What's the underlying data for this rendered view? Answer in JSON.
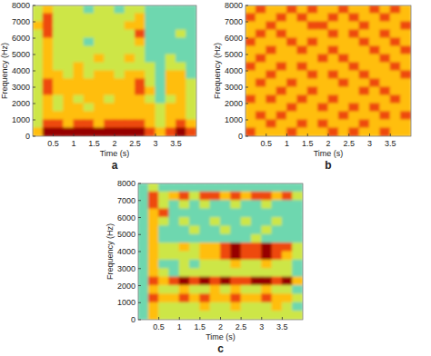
{
  "chart_data": [
    {
      "type": "heatmap",
      "label": "a",
      "x_label": "Time (s)",
      "y_label": "Frequency (Hz)",
      "xlim": [
        0,
        4
      ],
      "ylim": [
        0,
        8000
      ],
      "xticks": [
        0.5,
        1,
        1.5,
        2,
        2.5,
        3,
        3.5
      ],
      "yticks": [
        0,
        1000,
        2000,
        3000,
        4000,
        5000,
        6000,
        7000,
        8000
      ],
      "color_range": [
        0,
        5
      ],
      "cells": [
        [
          2,
          3,
          2,
          2,
          2,
          1,
          2,
          2,
          1,
          2,
          2,
          1,
          1,
          1,
          1,
          1
        ],
        [
          2,
          4,
          2,
          2,
          2,
          2,
          2,
          2,
          2,
          2,
          3,
          1,
          1,
          1,
          1,
          1
        ],
        [
          3,
          4,
          2,
          2,
          2,
          2,
          2,
          2,
          2,
          3,
          3,
          1,
          1,
          1,
          1,
          1
        ],
        [
          2,
          4,
          2,
          2,
          2,
          2,
          2,
          2,
          2,
          2,
          4,
          1,
          1,
          1,
          2,
          1
        ],
        [
          2,
          3,
          2,
          2,
          2,
          1,
          2,
          2,
          2,
          2,
          3,
          1,
          1,
          1,
          1,
          1
        ],
        [
          2,
          3,
          2,
          2,
          2,
          2,
          2,
          2,
          2,
          2,
          2,
          1,
          1,
          1,
          1,
          1
        ],
        [
          2,
          3,
          2,
          2,
          2,
          2,
          3,
          2,
          2,
          3,
          2,
          1,
          1,
          2,
          1,
          1
        ],
        [
          2,
          3,
          2,
          2,
          3,
          2,
          2,
          2,
          2,
          2,
          2,
          2,
          1,
          2,
          2,
          1
        ],
        [
          2,
          3,
          3,
          2,
          3,
          2,
          3,
          3,
          2,
          3,
          3,
          2,
          1,
          3,
          3,
          1
        ],
        [
          2,
          4,
          3,
          3,
          3,
          3,
          3,
          3,
          3,
          3,
          4,
          2,
          1,
          3,
          3,
          2
        ],
        [
          2,
          4,
          3,
          3,
          3,
          3,
          3,
          3,
          3,
          3,
          4,
          3,
          1,
          3,
          3,
          2
        ],
        [
          2,
          3,
          2,
          3,
          2,
          3,
          3,
          2,
          3,
          3,
          3,
          2,
          1,
          2,
          3,
          2
        ],
        [
          2,
          3,
          2,
          3,
          3,
          2,
          3,
          3,
          3,
          3,
          3,
          3,
          2,
          3,
          3,
          2
        ],
        [
          2,
          3,
          3,
          3,
          3,
          3,
          3,
          3,
          3,
          3,
          3,
          3,
          2,
          3,
          3,
          2
        ],
        [
          2,
          4,
          4,
          3,
          4,
          4,
          3,
          4,
          4,
          4,
          4,
          3,
          2,
          3,
          4,
          3
        ],
        [
          3,
          5,
          5,
          5,
          5,
          5,
          5,
          5,
          5,
          5,
          5,
          4,
          3,
          4,
          5,
          4
        ]
      ]
    },
    {
      "type": "heatmap",
      "label": "b",
      "x_label": "Time (s)",
      "y_label": "Frequency (Hz)",
      "xlim": [
        0,
        4
      ],
      "ylim": [
        0,
        8000
      ],
      "xticks": [
        0.5,
        1,
        1.5,
        2,
        2.5,
        3,
        3.5
      ],
      "yticks": [
        0,
        1000,
        2000,
        3000,
        4000,
        5000,
        6000,
        7000,
        8000
      ],
      "color_range": [
        0,
        5
      ],
      "cells": [
        [
          3,
          4,
          3,
          3,
          4,
          3,
          4,
          3,
          3,
          4,
          3,
          3,
          4,
          3,
          4,
          3
        ],
        [
          4,
          3,
          3,
          4,
          3,
          4,
          3,
          3,
          4,
          3,
          4,
          3,
          3,
          4,
          3,
          3
        ],
        [
          3,
          3,
          4,
          3,
          3,
          3,
          4,
          4,
          3,
          3,
          3,
          4,
          3,
          3,
          3,
          4
        ],
        [
          3,
          4,
          3,
          4,
          3,
          3,
          3,
          3,
          4,
          3,
          4,
          3,
          3,
          4,
          3,
          3
        ],
        [
          4,
          3,
          3,
          3,
          4,
          3,
          4,
          3,
          3,
          3,
          3,
          4,
          3,
          3,
          4,
          3
        ],
        [
          3,
          3,
          4,
          3,
          3,
          4,
          3,
          3,
          4,
          3,
          3,
          3,
          4,
          3,
          3,
          4
        ],
        [
          3,
          4,
          3,
          3,
          3,
          3,
          3,
          4,
          3,
          4,
          3,
          3,
          3,
          4,
          3,
          3
        ],
        [
          4,
          3,
          3,
          4,
          3,
          4,
          3,
          3,
          3,
          3,
          4,
          3,
          3,
          3,
          4,
          3
        ],
        [
          3,
          3,
          4,
          3,
          3,
          3,
          4,
          3,
          4,
          3,
          3,
          4,
          3,
          3,
          3,
          4
        ],
        [
          3,
          4,
          3,
          3,
          4,
          3,
          3,
          3,
          3,
          4,
          3,
          3,
          4,
          3,
          3,
          3
        ],
        [
          3,
          3,
          3,
          4,
          3,
          3,
          4,
          3,
          3,
          3,
          3,
          4,
          3,
          4,
          3,
          3
        ],
        [
          4,
          3,
          4,
          3,
          3,
          4,
          3,
          3,
          4,
          3,
          3,
          3,
          3,
          3,
          4,
          3
        ],
        [
          3,
          3,
          3,
          3,
          4,
          3,
          3,
          4,
          3,
          3,
          4,
          3,
          4,
          3,
          3,
          3
        ],
        [
          3,
          4,
          3,
          4,
          3,
          3,
          3,
          3,
          3,
          4,
          3,
          3,
          3,
          4,
          3,
          4
        ],
        [
          3,
          3,
          4,
          3,
          3,
          4,
          3,
          4,
          3,
          3,
          3,
          4,
          3,
          3,
          3,
          3
        ],
        [
          4,
          3,
          3,
          3,
          4,
          3,
          3,
          3,
          4,
          3,
          4,
          3,
          3,
          4,
          3,
          3
        ]
      ]
    },
    {
      "type": "heatmap",
      "label": "c",
      "x_label": "Time (s)",
      "y_label": "Frequency (Hz)",
      "xlim": [
        0,
        4
      ],
      "ylim": [
        0,
        8000
      ],
      "xticks": [
        0.5,
        1,
        1.5,
        2,
        2.5,
        3,
        3.5
      ],
      "yticks": [
        0,
        1000,
        2000,
        3000,
        4000,
        5000,
        6000,
        7000,
        8000
      ],
      "color_range": [
        0,
        5
      ],
      "cells": [
        [
          1,
          2,
          1,
          1,
          1,
          1,
          1,
          1,
          1,
          1,
          1,
          1,
          1,
          1,
          1,
          1
        ],
        [
          1,
          4,
          2,
          3,
          4,
          2,
          4,
          4,
          3,
          4,
          3,
          4,
          4,
          3,
          4,
          2
        ],
        [
          1,
          4,
          2,
          1,
          2,
          1,
          2,
          1,
          1,
          2,
          1,
          1,
          2,
          1,
          1,
          1
        ],
        [
          1,
          3,
          4,
          1,
          1,
          1,
          1,
          1,
          1,
          1,
          1,
          1,
          1,
          1,
          1,
          1
        ],
        [
          1,
          3,
          2,
          1,
          2,
          1,
          1,
          2,
          1,
          1,
          2,
          1,
          1,
          2,
          1,
          1
        ],
        [
          1,
          3,
          1,
          1,
          1,
          2,
          1,
          1,
          2,
          1,
          1,
          1,
          2,
          1,
          1,
          1
        ],
        [
          1,
          3,
          1,
          1,
          1,
          1,
          1,
          1,
          1,
          1,
          1,
          2,
          1,
          1,
          1,
          1
        ],
        [
          1,
          3,
          2,
          2,
          3,
          2,
          3,
          3,
          4,
          5,
          4,
          4,
          5,
          4,
          4,
          2
        ],
        [
          1,
          3,
          2,
          2,
          2,
          2,
          3,
          3,
          4,
          5,
          4,
          4,
          5,
          4,
          3,
          2
        ],
        [
          1,
          3,
          1,
          1,
          2,
          1,
          2,
          2,
          2,
          3,
          2,
          2,
          3,
          2,
          2,
          1
        ],
        [
          1,
          3,
          2,
          1,
          2,
          2,
          2,
          2,
          2,
          2,
          2,
          2,
          2,
          2,
          2,
          1
        ],
        [
          1,
          4,
          3,
          4,
          5,
          4,
          5,
          4,
          5,
          4,
          4,
          5,
          5,
          4,
          5,
          3
        ],
        [
          1,
          3,
          2,
          2,
          3,
          2,
          2,
          3,
          2,
          3,
          2,
          2,
          3,
          2,
          2,
          1
        ],
        [
          1,
          4,
          3,
          3,
          4,
          3,
          4,
          3,
          3,
          4,
          3,
          3,
          4,
          3,
          3,
          2
        ],
        [
          1,
          3,
          2,
          2,
          2,
          2,
          3,
          2,
          2,
          3,
          2,
          2,
          2,
          3,
          2,
          1
        ],
        [
          1,
          3,
          2,
          2,
          2,
          2,
          2,
          2,
          2,
          2,
          2,
          2,
          2,
          2,
          2,
          2
        ]
      ]
    }
  ]
}
